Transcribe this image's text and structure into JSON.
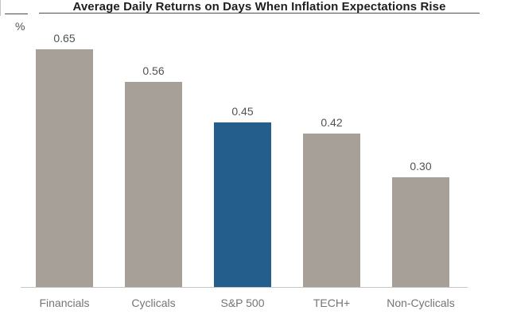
{
  "header": {
    "title": "Average Daily Returns on Days When Inflation Expectations Rise",
    "unit_label": "%"
  },
  "chart_data": {
    "type": "bar",
    "title": "Average Daily Returns on Days When Inflation Expectations Rise",
    "xlabel": "",
    "ylabel": "%",
    "categories": [
      "Financials",
      "Cyclicals",
      "S&P 500",
      "TECH+",
      "Non-Cyclicals"
    ],
    "values": [
      0.65,
      0.56,
      0.45,
      0.42,
      0.3
    ],
    "value_labels": [
      "0.65",
      "0.56",
      "0.45",
      "0.42",
      "0.30"
    ],
    "ylim": [
      0,
      0.745
    ],
    "grid": false,
    "legend": false,
    "highlight_category": "S&P 500",
    "colors": {
      "bar_default": "#A7A099",
      "bar_highlight": "#235E8D",
      "value_label": "#515254",
      "category_label": "#737477",
      "axis_line": "#C6C7C5",
      "title_text": "#1E1E1E",
      "title_rule": "#4B4C4E"
    }
  }
}
